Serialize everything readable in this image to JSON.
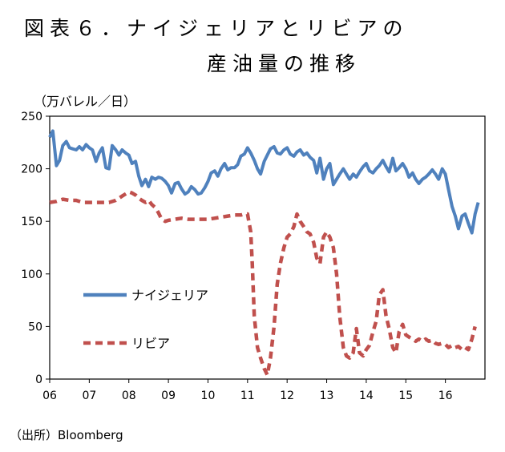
{
  "title_line1": "図表６．ナイジェリアとリビアの",
  "title_line2": "産油量の推移",
  "unit_label": "（万バレル／日）",
  "source_label": "（出所）Bloomberg",
  "chart_data": {
    "type": "line",
    "title": "図表６．ナイジェリアとリビアの産油量の推移",
    "ylabel": "（万バレル／日）",
    "xlabel": "",
    "ylim": [
      0,
      250
    ],
    "yticks": [
      0,
      50,
      100,
      150,
      200,
      250
    ],
    "xlim": [
      2006,
      2017
    ],
    "xticks": [
      2006,
      2007,
      2008,
      2009,
      2010,
      2011,
      2012,
      2013,
      2014,
      2015,
      2016
    ],
    "xtick_labels": [
      "06",
      "07",
      "08",
      "09",
      "10",
      "11",
      "12",
      "13",
      "14",
      "15",
      "16"
    ],
    "legend_position": "center-left",
    "grid": false,
    "series": [
      {
        "name": "ナイジェリア",
        "color": "#4F81BD",
        "style": "solid",
        "points": [
          [
            2006.0,
            230
          ],
          [
            2006.08,
            236
          ],
          [
            2006.17,
            203
          ],
          [
            2006.25,
            208
          ],
          [
            2006.33,
            222
          ],
          [
            2006.42,
            226
          ],
          [
            2006.5,
            220
          ],
          [
            2006.58,
            219
          ],
          [
            2006.67,
            218
          ],
          [
            2006.75,
            221
          ],
          [
            2006.83,
            218
          ],
          [
            2006.92,
            223
          ],
          [
            2007.0,
            220
          ],
          [
            2007.08,
            218
          ],
          [
            2007.17,
            207
          ],
          [
            2007.25,
            215
          ],
          [
            2007.33,
            220
          ],
          [
            2007.42,
            201
          ],
          [
            2007.5,
            200
          ],
          [
            2007.58,
            222
          ],
          [
            2007.67,
            218
          ],
          [
            2007.75,
            213
          ],
          [
            2007.83,
            218
          ],
          [
            2007.92,
            215
          ],
          [
            2008.0,
            213
          ],
          [
            2008.08,
            205
          ],
          [
            2008.17,
            207
          ],
          [
            2008.25,
            193
          ],
          [
            2008.33,
            184
          ],
          [
            2008.42,
            190
          ],
          [
            2008.5,
            183
          ],
          [
            2008.58,
            192
          ],
          [
            2008.67,
            190
          ],
          [
            2008.75,
            192
          ],
          [
            2008.83,
            191
          ],
          [
            2008.92,
            188
          ],
          [
            2009.0,
            184
          ],
          [
            2009.08,
            177
          ],
          [
            2009.17,
            186
          ],
          [
            2009.25,
            187
          ],
          [
            2009.33,
            181
          ],
          [
            2009.42,
            176
          ],
          [
            2009.5,
            178
          ],
          [
            2009.58,
            183
          ],
          [
            2009.67,
            180
          ],
          [
            2009.75,
            176
          ],
          [
            2009.83,
            177
          ],
          [
            2009.92,
            182
          ],
          [
            2010.0,
            188
          ],
          [
            2010.08,
            196
          ],
          [
            2010.17,
            198
          ],
          [
            2010.25,
            193
          ],
          [
            2010.33,
            200
          ],
          [
            2010.42,
            205
          ],
          [
            2010.5,
            199
          ],
          [
            2010.58,
            201
          ],
          [
            2010.67,
            201
          ],
          [
            2010.75,
            204
          ],
          [
            2010.83,
            212
          ],
          [
            2010.92,
            214
          ],
          [
            2011.0,
            220
          ],
          [
            2011.08,
            215
          ],
          [
            2011.17,
            208
          ],
          [
            2011.25,
            200
          ],
          [
            2011.33,
            195
          ],
          [
            2011.42,
            207
          ],
          [
            2011.5,
            213
          ],
          [
            2011.58,
            219
          ],
          [
            2011.67,
            221
          ],
          [
            2011.75,
            215
          ],
          [
            2011.83,
            214
          ],
          [
            2011.92,
            218
          ],
          [
            2012.0,
            220
          ],
          [
            2012.08,
            214
          ],
          [
            2012.17,
            212
          ],
          [
            2012.25,
            216
          ],
          [
            2012.33,
            218
          ],
          [
            2012.42,
            213
          ],
          [
            2012.5,
            215
          ],
          [
            2012.58,
            211
          ],
          [
            2012.67,
            208
          ],
          [
            2012.75,
            196
          ],
          [
            2012.83,
            210
          ],
          [
            2012.92,
            190
          ],
          [
            2013.0,
            200
          ],
          [
            2013.08,
            205
          ],
          [
            2013.17,
            185
          ],
          [
            2013.25,
            190
          ],
          [
            2013.33,
            195
          ],
          [
            2013.42,
            200
          ],
          [
            2013.5,
            195
          ],
          [
            2013.58,
            190
          ],
          [
            2013.67,
            195
          ],
          [
            2013.75,
            192
          ],
          [
            2013.83,
            197
          ],
          [
            2013.92,
            202
          ],
          [
            2014.0,
            205
          ],
          [
            2014.08,
            198
          ],
          [
            2014.17,
            196
          ],
          [
            2014.25,
            200
          ],
          [
            2014.33,
            203
          ],
          [
            2014.42,
            208
          ],
          [
            2014.5,
            202
          ],
          [
            2014.58,
            197
          ],
          [
            2014.67,
            210
          ],
          [
            2014.75,
            198
          ],
          [
            2014.83,
            201
          ],
          [
            2014.92,
            205
          ],
          [
            2015.0,
            200
          ],
          [
            2015.08,
            192
          ],
          [
            2015.17,
            196
          ],
          [
            2015.25,
            190
          ],
          [
            2015.33,
            186
          ],
          [
            2015.42,
            190
          ],
          [
            2015.5,
            192
          ],
          [
            2015.58,
            195
          ],
          [
            2015.67,
            199
          ],
          [
            2015.75,
            195
          ],
          [
            2015.83,
            190
          ],
          [
            2015.92,
            200
          ],
          [
            2016.0,
            195
          ],
          [
            2016.08,
            180
          ],
          [
            2016.17,
            164
          ],
          [
            2016.25,
            155
          ],
          [
            2016.33,
            143
          ],
          [
            2016.42,
            155
          ],
          [
            2016.5,
            157
          ],
          [
            2016.58,
            148
          ],
          [
            2016.67,
            139
          ],
          [
            2016.75,
            157
          ],
          [
            2016.83,
            168
          ]
        ]
      },
      {
        "name": "リビア",
        "color": "#C0504D",
        "style": "dashed",
        "points": [
          [
            2006.0,
            168
          ],
          [
            2006.17,
            169
          ],
          [
            2006.33,
            171
          ],
          [
            2006.5,
            170
          ],
          [
            2006.67,
            170
          ],
          [
            2006.83,
            168
          ],
          [
            2007.0,
            168
          ],
          [
            2007.17,
            168
          ],
          [
            2007.33,
            168
          ],
          [
            2007.5,
            168
          ],
          [
            2007.67,
            170
          ],
          [
            2007.83,
            174
          ],
          [
            2008.0,
            178
          ],
          [
            2008.08,
            177
          ],
          [
            2008.17,
            175
          ],
          [
            2008.25,
            172
          ],
          [
            2008.33,
            170
          ],
          [
            2008.42,
            168
          ],
          [
            2008.5,
            170
          ],
          [
            2008.58,
            166
          ],
          [
            2008.67,
            163
          ],
          [
            2008.75,
            158
          ],
          [
            2008.83,
            152
          ],
          [
            2008.92,
            150
          ],
          [
            2009.0,
            151
          ],
          [
            2009.17,
            152
          ],
          [
            2009.33,
            153
          ],
          [
            2009.5,
            152
          ],
          [
            2009.67,
            152
          ],
          [
            2009.83,
            152
          ],
          [
            2010.0,
            152
          ],
          [
            2010.17,
            153
          ],
          [
            2010.33,
            154
          ],
          [
            2010.5,
            155
          ],
          [
            2010.67,
            156
          ],
          [
            2010.83,
            156
          ],
          [
            2010.92,
            157
          ],
          [
            2011.0,
            157
          ],
          [
            2011.08,
            140
          ],
          [
            2011.12,
            110
          ],
          [
            2011.17,
            60
          ],
          [
            2011.25,
            30
          ],
          [
            2011.33,
            20
          ],
          [
            2011.42,
            10
          ],
          [
            2011.5,
            4
          ],
          [
            2011.58,
            20
          ],
          [
            2011.67,
            50
          ],
          [
            2011.75,
            90
          ],
          [
            2011.83,
            110
          ],
          [
            2011.92,
            125
          ],
          [
            2012.0,
            135
          ],
          [
            2012.08,
            138
          ],
          [
            2012.17,
            145
          ],
          [
            2012.25,
            157
          ],
          [
            2012.33,
            150
          ],
          [
            2012.42,
            145
          ],
          [
            2012.5,
            140
          ],
          [
            2012.58,
            138
          ],
          [
            2012.67,
            130
          ],
          [
            2012.75,
            115
          ],
          [
            2012.83,
            110
          ],
          [
            2012.92,
            135
          ],
          [
            2013.0,
            140
          ],
          [
            2013.08,
            135
          ],
          [
            2013.17,
            125
          ],
          [
            2013.25,
            100
          ],
          [
            2013.33,
            60
          ],
          [
            2013.42,
            30
          ],
          [
            2013.5,
            22
          ],
          [
            2013.58,
            20
          ],
          [
            2013.67,
            25
          ],
          [
            2013.75,
            48
          ],
          [
            2013.83,
            25
          ],
          [
            2013.92,
            22
          ],
          [
            2014.0,
            28
          ],
          [
            2014.08,
            32
          ],
          [
            2014.17,
            45
          ],
          [
            2014.25,
            55
          ],
          [
            2014.33,
            80
          ],
          [
            2014.42,
            85
          ],
          [
            2014.5,
            60
          ],
          [
            2014.58,
            48
          ],
          [
            2014.67,
            30
          ],
          [
            2014.75,
            25
          ],
          [
            2014.83,
            45
          ],
          [
            2014.92,
            52
          ],
          [
            2015.0,
            42
          ],
          [
            2015.08,
            40
          ],
          [
            2015.17,
            38
          ],
          [
            2015.25,
            36
          ],
          [
            2015.33,
            38
          ],
          [
            2015.42,
            36
          ],
          [
            2015.5,
            38
          ],
          [
            2015.58,
            36
          ],
          [
            2015.67,
            37
          ],
          [
            2015.75,
            34
          ],
          [
            2015.83,
            33
          ],
          [
            2015.92,
            34
          ],
          [
            2016.0,
            33
          ],
          [
            2016.08,
            30
          ],
          [
            2016.17,
            32
          ],
          [
            2016.25,
            30
          ],
          [
            2016.33,
            31
          ],
          [
            2016.42,
            28
          ],
          [
            2016.5,
            30
          ],
          [
            2016.58,
            28
          ],
          [
            2016.67,
            38
          ],
          [
            2016.75,
            50
          ]
        ]
      }
    ]
  }
}
